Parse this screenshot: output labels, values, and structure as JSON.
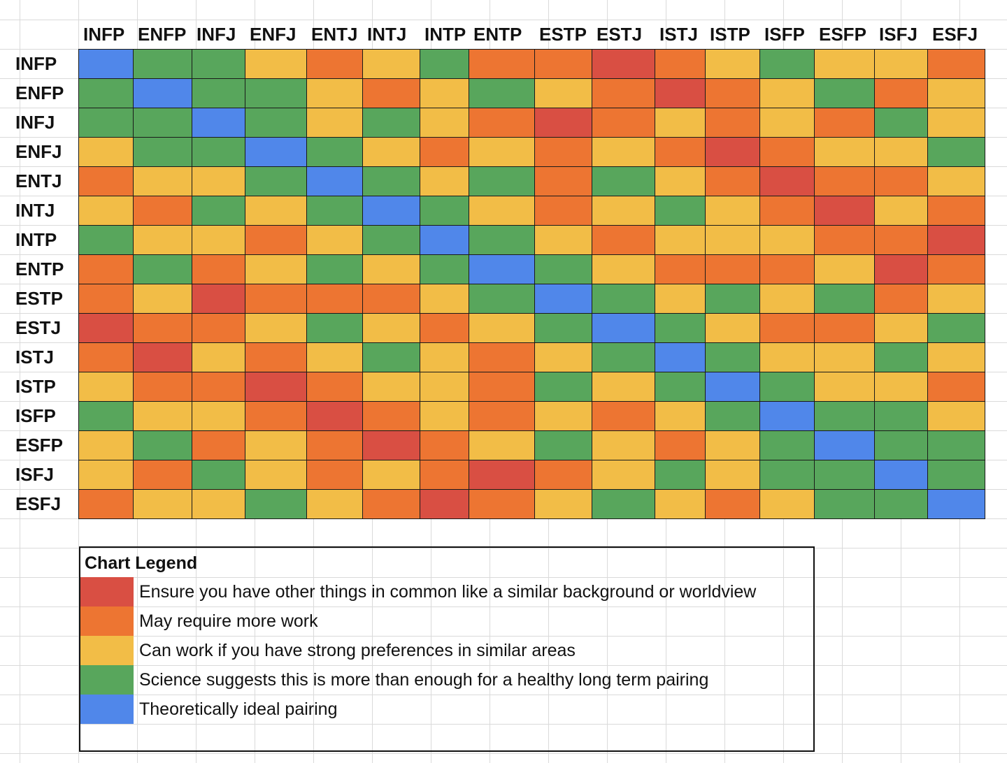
{
  "chart_data": {
    "type": "heatmap",
    "title": "",
    "columns": [
      "INFP",
      "ENFP",
      "INFJ",
      "ENFJ",
      "ENTJ",
      "INTJ",
      "INTP",
      "ENTP",
      "ESTP",
      "ESTJ",
      "ISTJ",
      "ISTP",
      "ISFP",
      "ESFP",
      "ISFJ",
      "ESFJ"
    ],
    "rows": [
      "INFP",
      "ENFP",
      "INFJ",
      "ENFJ",
      "ENTJ",
      "INTJ",
      "INTP",
      "ENTP",
      "ESTP",
      "ESTJ",
      "ISTJ",
      "ISTP",
      "ISFP",
      "ESFP",
      "ISFJ",
      "ESFJ"
    ],
    "levels": {
      "1": {
        "label": "Ensure you have other things in common like a similar background or worldview",
        "color": "#d94f43"
      },
      "2": {
        "label": "May require more work",
        "color": "#ed7532"
      },
      "3": {
        "label": "Can work if you have strong preferences in similar areas",
        "color": "#f2bd47"
      },
      "4": {
        "label": "Science suggests this is more than enough for a healthy long term pairing",
        "color": "#58a65c"
      },
      "5": {
        "label": "Theoretically ideal pairing",
        "color": "#5087ea"
      }
    },
    "values": [
      [
        5,
        4,
        4,
        3,
        2,
        3,
        4,
        2,
        2,
        1,
        2,
        3,
        4,
        3,
        3,
        2
      ],
      [
        4,
        5,
        4,
        4,
        3,
        2,
        3,
        4,
        3,
        2,
        1,
        2,
        3,
        4,
        2,
        3
      ],
      [
        4,
        4,
        5,
        4,
        3,
        4,
        3,
        2,
        1,
        2,
        3,
        2,
        3,
        2,
        4,
        3
      ],
      [
        3,
        4,
        4,
        5,
        4,
        3,
        2,
        3,
        2,
        3,
        2,
        1,
        2,
        3,
        3,
        4
      ],
      [
        2,
        3,
        3,
        4,
        5,
        4,
        3,
        4,
        2,
        4,
        3,
        2,
        1,
        2,
        2,
        3
      ],
      [
        3,
        2,
        4,
        3,
        4,
        5,
        4,
        3,
        2,
        3,
        4,
        3,
        2,
        1,
        3,
        2
      ],
      [
        4,
        3,
        3,
        2,
        3,
        4,
        5,
        4,
        3,
        2,
        3,
        3,
        3,
        2,
        2,
        1
      ],
      [
        2,
        4,
        2,
        3,
        4,
        3,
        4,
        5,
        4,
        3,
        2,
        2,
        2,
        3,
        1,
        2
      ],
      [
        2,
        3,
        1,
        2,
        2,
        2,
        3,
        4,
        5,
        4,
        3,
        4,
        3,
        4,
        2,
        3
      ],
      [
        1,
        2,
        2,
        3,
        4,
        3,
        2,
        3,
        4,
        5,
        4,
        3,
        2,
        2,
        3,
        4
      ],
      [
        2,
        1,
        3,
        2,
        3,
        4,
        3,
        2,
        3,
        4,
        5,
        4,
        3,
        3,
        4,
        3
      ],
      [
        3,
        2,
        2,
        1,
        2,
        3,
        3,
        2,
        4,
        3,
        4,
        5,
        4,
        3,
        3,
        2
      ],
      [
        4,
        3,
        3,
        2,
        1,
        2,
        3,
        2,
        3,
        2,
        3,
        4,
        5,
        4,
        4,
        3
      ],
      [
        3,
        4,
        2,
        3,
        2,
        1,
        2,
        3,
        4,
        3,
        2,
        3,
        4,
        5,
        4,
        4
      ],
      [
        3,
        2,
        4,
        3,
        2,
        3,
        2,
        1,
        2,
        3,
        4,
        3,
        4,
        4,
        5,
        4
      ],
      [
        2,
        3,
        3,
        4,
        3,
        2,
        1,
        2,
        3,
        4,
        3,
        2,
        3,
        4,
        4,
        5
      ]
    ]
  },
  "legend": {
    "title": "Chart Legend",
    "items": [
      {
        "label": "Ensure you have other things in common like a similar background or worldview",
        "color": "#d94f43"
      },
      {
        "label": "May require more work",
        "color": "#ed7532"
      },
      {
        "label": "Can work if you have strong preferences in similar areas",
        "color": "#f2bd47"
      },
      {
        "label": "Science suggests this is more than enough for a healthy long term pairing",
        "color": "#58a65c"
      },
      {
        "label": "Theoretically ideal pairing",
        "color": "#5087ea"
      }
    ]
  }
}
